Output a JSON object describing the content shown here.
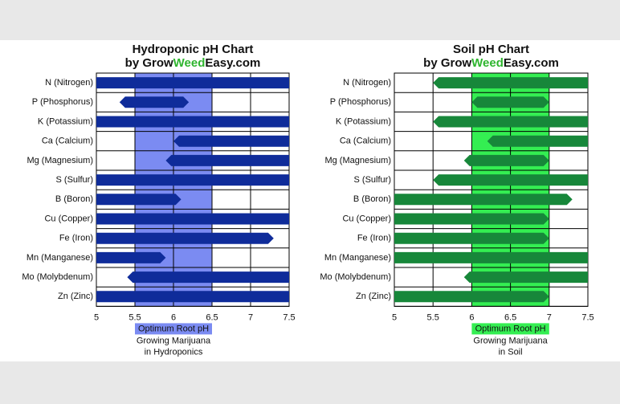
{
  "chart_data": [
    {
      "type": "range-bar",
      "title": "Hydroponic pH Chart",
      "subtitle": [
        {
          "text": "by Grow"
        },
        {
          "text": "Weed",
          "color": "#2fb52f"
        },
        {
          "text": "Easy.com"
        }
      ],
      "categories": [
        "N (Nitrogen)",
        "P (Phosphorus)",
        "K (Potassium)",
        "Ca (Calcium)",
        "Mg (Magnesium)",
        "S (Sulfur)",
        "B (Boron)",
        "Cu (Copper)",
        "Fe (Iron)",
        "Mn (Manganese)",
        "Mo (Molybdenum)",
        "Zn (Zinc)"
      ],
      "low": [
        5,
        5.3,
        5,
        6.0,
        5.9,
        5,
        5,
        5,
        5,
        5,
        5.4,
        5
      ],
      "high": [
        7.5,
        6.2,
        7.5,
        7.5,
        7.5,
        7.5,
        6.1,
        7.5,
        7.3,
        5.9,
        7.5,
        7.5
      ],
      "color": "#0f2c9a",
      "band": {
        "label": "Optimum Root pH",
        "from": 5.5,
        "to": 6.5,
        "color": "#7b8bf2"
      },
      "caption": [
        "Growing Marijuana",
        "in Hydroponics"
      ],
      "xlim": [
        5,
        7.5
      ],
      "xticks": [
        5,
        5.5,
        6,
        6.5,
        7,
        7.5
      ],
      "grid": true
    },
    {
      "type": "range-bar",
      "title": "Soil pH Chart",
      "subtitle": [
        {
          "text": "by Grow"
        },
        {
          "text": "Weed",
          "color": "#2fb52f"
        },
        {
          "text": "Easy.com"
        }
      ],
      "categories": [
        "N (Nitrogen)",
        "P (Phosphorus)",
        "K (Potassium)",
        "Ca (Calcium)",
        "Mg (Magnesium)",
        "S (Sulfur)",
        "B (Boron)",
        "Cu (Copper)",
        "Fe (Iron)",
        "Mn (Manganese)",
        "Mo (Molybdenum)",
        "Zn (Zinc)"
      ],
      "low": [
        5.5,
        6.0,
        5.5,
        6.2,
        5.9,
        5.5,
        5,
        5,
        5,
        5,
        5.9,
        5
      ],
      "high": [
        7.5,
        7.0,
        7.5,
        7.5,
        7.0,
        7.5,
        7.3,
        7.0,
        7.0,
        7.5,
        7.5,
        7.0
      ],
      "color": "#17873a",
      "band": {
        "label": "Optimum Root pH",
        "from": 6.0,
        "to": 7.0,
        "color": "#34ee52"
      },
      "caption": [
        "Growing Marijuana",
        "in Soil"
      ],
      "xlim": [
        5,
        7.5
      ],
      "xticks": [
        5,
        5.5,
        6,
        6.5,
        7,
        7.5
      ],
      "grid": true
    }
  ]
}
